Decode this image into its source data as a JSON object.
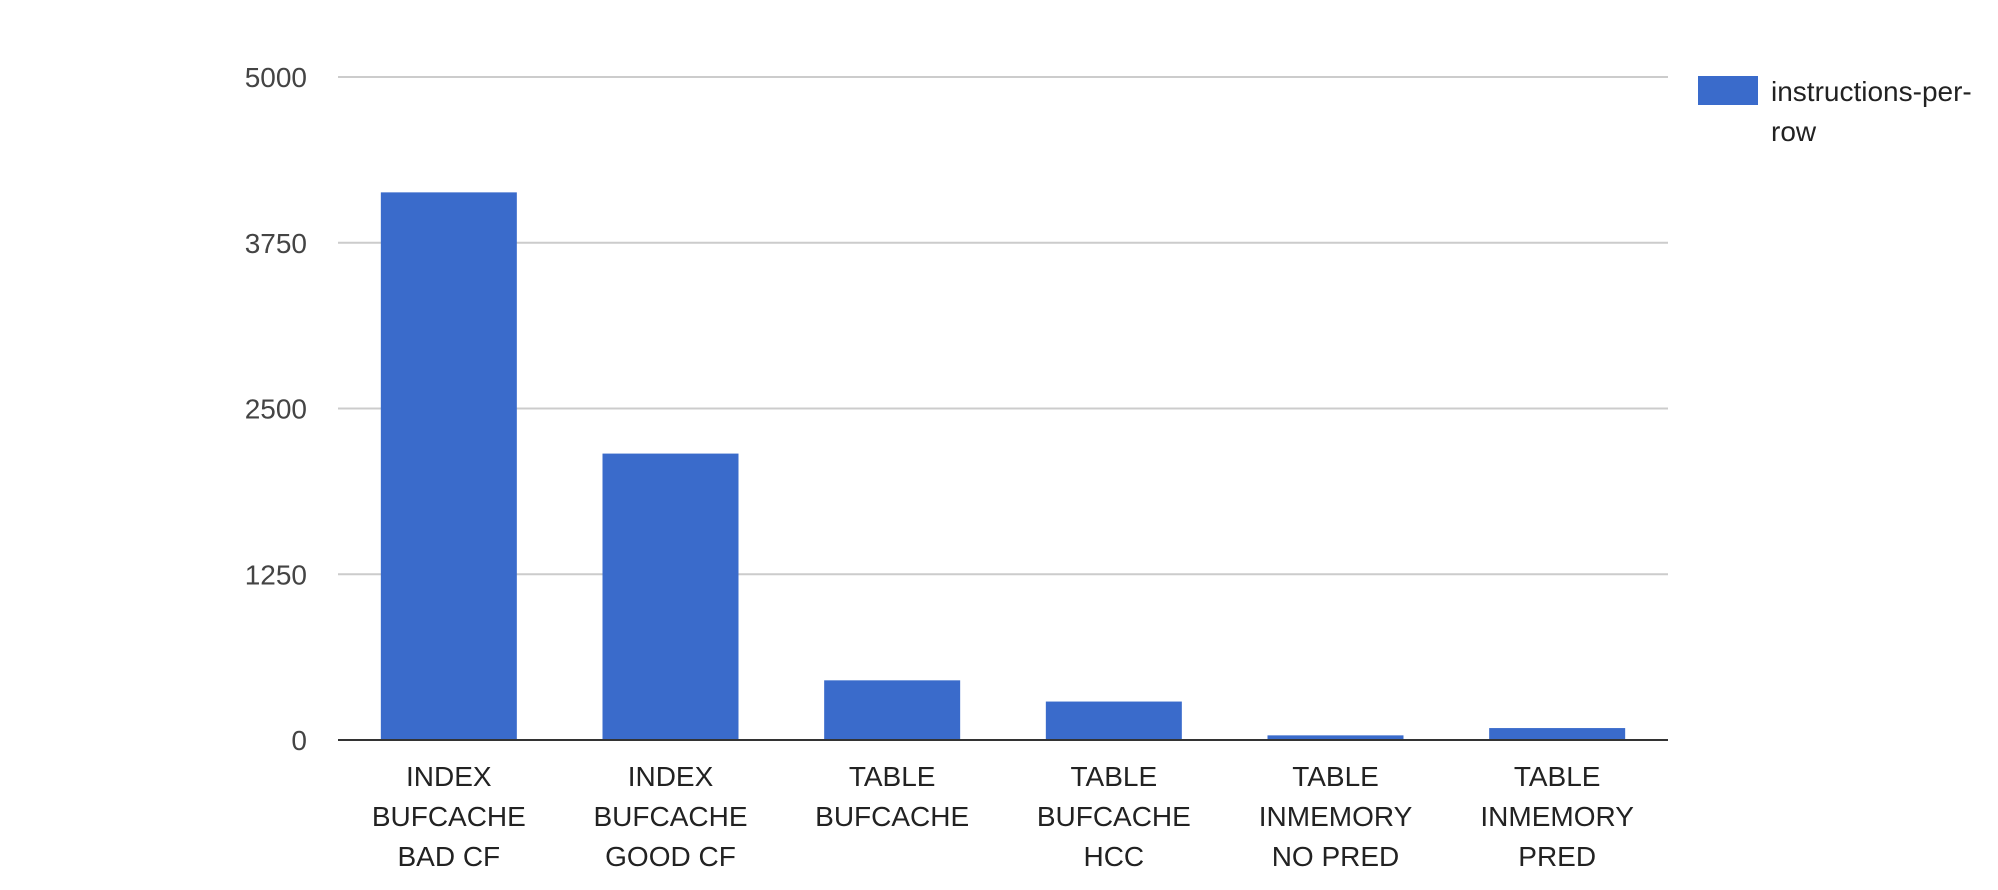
{
  "chart_data": {
    "type": "bar",
    "categories": [
      [
        "INDEX",
        "BUFCACHE",
        "BAD CF"
      ],
      [
        "INDEX",
        "BUFCACHE",
        "GOOD CF"
      ],
      [
        "TABLE",
        "BUFCACHE"
      ],
      [
        "TABLE",
        "BUFCACHE",
        "HCC"
      ],
      [
        "TABLE",
        "INMEMORY",
        "NO PRED"
      ],
      [
        "TABLE",
        "INMEMORY",
        "PRED"
      ]
    ],
    "series": [
      {
        "name": "instructions-per-row",
        "name_lines": [
          "instructions-per-",
          "row"
        ],
        "color": "#3a6bcb",
        "values": [
          4130,
          2160,
          450,
          290,
          35,
          90
        ]
      }
    ],
    "yticks": [
      "0",
      "1250",
      "2500",
      "3750",
      "5000"
    ],
    "ylim": [
      0,
      5000
    ],
    "grid": true,
    "legend_position": "right",
    "title": "",
    "xlabel": "",
    "ylabel": ""
  }
}
